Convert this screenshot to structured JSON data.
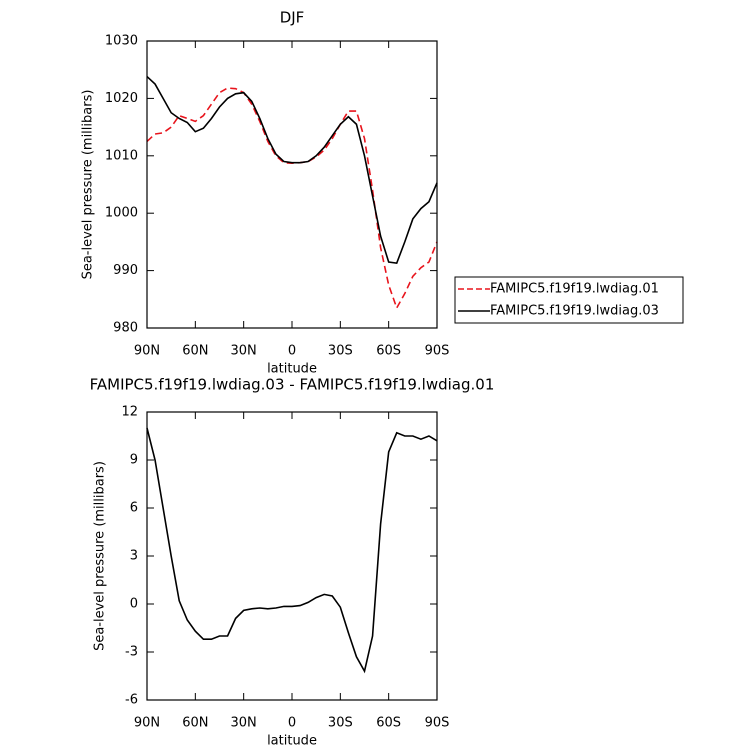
{
  "chart_data": [
    {
      "type": "line",
      "title": "DJF",
      "xlabel": "latitude",
      "ylabel": "Sea-level pressure (millibars)",
      "x": [
        90,
        85,
        80,
        75,
        70,
        65,
        60,
        55,
        50,
        45,
        40,
        35,
        30,
        25,
        20,
        15,
        10,
        5,
        0,
        -5,
        -10,
        -15,
        -20,
        -25,
        -30,
        -35,
        -40,
        -45,
        -50,
        -55,
        -60,
        -65,
        -70,
        -75,
        -80,
        -85,
        -90
      ],
      "xlim": [
        90,
        -90
      ],
      "xticks": [
        {
          "value": 90,
          "label": "90N"
        },
        {
          "value": 60,
          "label": "60N"
        },
        {
          "value": 30,
          "label": "30N"
        },
        0,
        {
          "value": -30,
          "label": "30S"
        },
        {
          "value": -60,
          "label": "60S"
        },
        {
          "value": -90,
          "label": "90S"
        }
      ],
      "ylim": [
        980,
        1030
      ],
      "yticks": [
        980,
        990,
        1000,
        1010,
        1020,
        1030
      ],
      "legend": "right",
      "series": [
        {
          "name": "FAMIPC5.f19f19.lwdiag.01",
          "color": "#e8141c",
          "dashed": true,
          "values": [
            1012.5,
            1013.8,
            1014,
            1015,
            1017,
            1016.5,
            1016,
            1017,
            1019,
            1021,
            1021.8,
            1021.7,
            1021,
            1019,
            1016,
            1012.5,
            1010,
            1008.8,
            1008.7,
            1008.8,
            1009,
            1009.8,
            1011,
            1013,
            1015.5,
            1017.8,
            1017.8,
            1013,
            1004,
            994,
            987.5,
            983.5,
            986,
            989,
            990.5,
            991.5,
            995
          ]
        },
        {
          "name": "FAMIPC5.f19f19.lwdiag.03",
          "color": "#000000",
          "dashed": false,
          "values": [
            1023.8,
            1022.5,
            1020,
            1017.5,
            1016.5,
            1015.8,
            1014.2,
            1014.8,
            1016.5,
            1018.5,
            1020,
            1020.8,
            1021,
            1019.5,
            1016.5,
            1013,
            1010.3,
            1009,
            1008.8,
            1008.8,
            1009,
            1010,
            1011.5,
            1013.5,
            1015.5,
            1016.8,
            1015.5,
            1010,
            1003,
            996,
            991.5,
            991.3,
            995,
            999,
            1000.8,
            1002,
            1005.3
          ]
        }
      ]
    },
    {
      "type": "line",
      "title": "FAMIPC5.f19f19.lwdiag.03 - FAMIPC5.f19f19.lwdiag.01",
      "xlabel": "latitude",
      "ylabel": "Sea-level pressure (millibars)",
      "x": [
        90,
        85,
        80,
        75,
        70,
        65,
        60,
        55,
        50,
        45,
        40,
        35,
        30,
        25,
        20,
        15,
        10,
        5,
        0,
        -5,
        -10,
        -15,
        -20,
        -25,
        -30,
        -35,
        -40,
        -45,
        -50,
        -55,
        -60,
        -65,
        -70,
        -75,
        -80,
        -85,
        -90
      ],
      "xlim": [
        90,
        -90
      ],
      "xticks": [
        {
          "value": 90,
          "label": "90N"
        },
        {
          "value": 60,
          "label": "60N"
        },
        {
          "value": 30,
          "label": "30N"
        },
        0,
        {
          "value": -30,
          "label": "30S"
        },
        {
          "value": -60,
          "label": "60S"
        },
        {
          "value": -90,
          "label": "90S"
        }
      ],
      "ylim": [
        -6,
        12
      ],
      "yticks": [
        -6,
        -3,
        0,
        3,
        6,
        9,
        12
      ],
      "series": [
        {
          "color": "#000000",
          "dashed": false,
          "values": [
            11,
            9,
            6,
            3,
            0.2,
            -1,
            -1.7,
            -2.2,
            -2.2,
            -2,
            -2,
            -0.9,
            -0.4,
            -0.3,
            -0.25,
            -0.3,
            -0.25,
            -0.15,
            -0.15,
            -0.1,
            0.1,
            0.4,
            0.6,
            0.5,
            -0.2,
            -1.8,
            -3.3,
            -4.2,
            -2,
            5,
            9.5,
            10.7,
            10.5,
            10.5,
            10.3,
            10.5,
            10.2
          ]
        }
      ]
    }
  ]
}
